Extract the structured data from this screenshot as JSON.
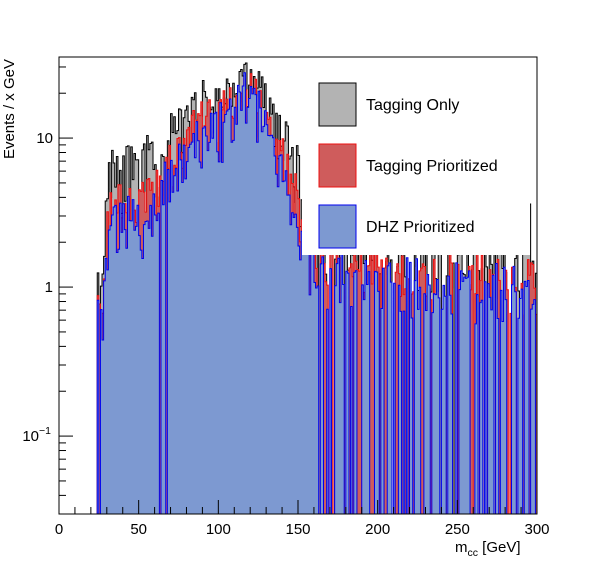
{
  "chart_data": {
    "type": "histogram",
    "xlabel_main": "m",
    "xlabel_sub": "cc",
    "xlabel_unit": " [GeV]",
    "ylabel": "Events / x GeV",
    "xlim": [
      0,
      300
    ],
    "ylim": [
      0.03,
      35
    ],
    "y_scale": "log",
    "x_ticks": [
      0,
      50,
      100,
      150,
      200,
      250,
      300
    ],
    "y_tick_labels": [
      "10",
      "1"
    ],
    "y_tick_exp_base": "10",
    "y_tick_exp_power": "−1",
    "bins": 300,
    "legend_position": "top-right",
    "series": [
      {
        "name": "Tagging Only",
        "fill": "#b3b3b3",
        "line": "#000000",
        "x": [
          25,
          27,
          30,
          33,
          36,
          40,
          45,
          50,
          55,
          60,
          65,
          70,
          75,
          80,
          85,
          90,
          95,
          100,
          105,
          110,
          113,
          116,
          119,
          122,
          125,
          128,
          131,
          135,
          140,
          145,
          150,
          153,
          156,
          160,
          165,
          170,
          180,
          190,
          200,
          210,
          220,
          230,
          240,
          250,
          260,
          270,
          280,
          290,
          295,
          298
        ],
        "y": [
          1.5,
          1.0,
          4.0,
          7.0,
          6.0,
          5.5,
          7.0,
          5.5,
          7.5,
          6.5,
          7.5,
          10,
          11,
          12,
          15,
          17,
          16,
          17,
          19,
          20,
          22,
          24,
          23,
          24,
          22,
          19,
          15,
          13,
          10,
          8,
          6,
          3.5,
          2.5,
          2.2,
          2.0,
          1.8,
          1.6,
          1.7,
          1.6,
          1.7,
          1.8,
          1.6,
          1.5,
          1.6,
          1.5,
          1.6,
          1.5,
          1.4,
          4.5,
          1.2
        ]
      },
      {
        "name": "Tagging Prioritized",
        "fill": "#cf5c5c",
        "line": "#ee1111",
        "x": [
          25,
          27,
          30,
          33,
          36,
          40,
          45,
          50,
          55,
          60,
          65,
          70,
          75,
          80,
          85,
          90,
          95,
          100,
          105,
          110,
          113,
          116,
          119,
          122,
          125,
          128,
          131,
          135,
          140,
          145,
          150,
          153,
          156,
          160,
          165,
          170,
          180,
          190,
          200,
          210,
          220,
          230,
          240,
          250,
          260,
          270,
          280,
          290,
          295,
          298
        ],
        "y": [
          0.8,
          0.6,
          2.5,
          3.5,
          3.5,
          3.5,
          4.0,
          3.5,
          4.5,
          4.0,
          5.5,
          6.5,
          7.5,
          8.5,
          11,
          13,
          13,
          14,
          15,
          16,
          18,
          19,
          19,
          19,
          17,
          15,
          12,
          9,
          7,
          5.5,
          4,
          2.5,
          1.8,
          1.6,
          1.5,
          1.4,
          1.3,
          1.4,
          1.3,
          1.3,
          1.3,
          1.3,
          1.3,
          1.3,
          1.3,
          1.2,
          1.2,
          1.2,
          1.1,
          1.0
        ]
      },
      {
        "name": "DHZ Prioritized",
        "fill": "#7d99d1",
        "line": "#0000ee",
        "x": [
          25,
          27,
          30,
          33,
          36,
          40,
          45,
          50,
          55,
          60,
          65,
          70,
          75,
          80,
          85,
          90,
          95,
          100,
          105,
          110,
          113,
          116,
          119,
          122,
          125,
          128,
          131,
          135,
          140,
          145,
          150,
          153,
          156,
          160,
          165,
          170,
          180,
          190,
          200,
          210,
          220,
          230,
          240,
          250,
          260,
          270,
          280,
          290,
          295,
          298
        ],
        "y": [
          0.6,
          0.5,
          2.0,
          2.5,
          3.0,
          3.0,
          3.0,
          2.5,
          3.0,
          3.5,
          4.5,
          5.5,
          6.5,
          7.5,
          9,
          10,
          11,
          12,
          13,
          15,
          17,
          19,
          19,
          18,
          15,
          13,
          10,
          7,
          5.5,
          4,
          2.8,
          2.0,
          1.5,
          1.4,
          1.3,
          1.2,
          1.2,
          1.2,
          1.2,
          1.2,
          1.1,
          1.1,
          1.1,
          1.1,
          1.0,
          1.0,
          1.0,
          1.0,
          0.9,
          0.9
        ]
      }
    ]
  }
}
